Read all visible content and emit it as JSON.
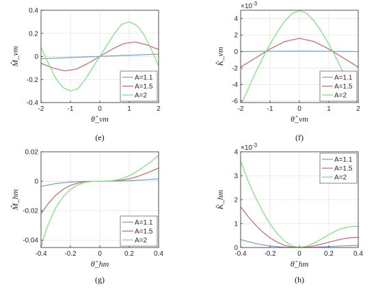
{
  "colors": {
    "axis": "#262626",
    "grid": "#e3e3e3",
    "series_blue": "#7ca3c9",
    "series_red": "#c96a78",
    "series_green": "#7fe07f"
  },
  "chart_data": [
    {
      "panel": "e",
      "caption": "(e)",
      "type": "line",
      "ylabel": "M̂_vm",
      "xlabel": "θ̂_vm",
      "xlim": [
        -2,
        2
      ],
      "ylim": [
        -0.4,
        0.4
      ],
      "xticks": [
        -2,
        -1,
        0,
        1,
        2
      ],
      "yticks": [
        -0.4,
        -0.2,
        0,
        0.2,
        0.4
      ],
      "ytick_labels": [
        "-0.4",
        "-0.2",
        "0",
        "0.2",
        "0.4"
      ],
      "xtick_labels": [
        "-2",
        "-1",
        "0",
        "1",
        "2"
      ],
      "legend": {
        "position": "bottom-right",
        "labels": [
          "A=1.1",
          "A=1.5",
          "A=2"
        ]
      },
      "series": [
        {
          "name": "A=1.1",
          "x": [
            -2,
            -1.5,
            -1,
            -0.5,
            0,
            0.5,
            1,
            1.5,
            2
          ],
          "y": [
            -0.02,
            -0.015,
            -0.01,
            -0.005,
            0,
            0.005,
            0.01,
            0.015,
            0.02
          ]
        },
        {
          "name": "A=1.5",
          "x": [
            -2,
            -1.6,
            -1.2,
            -0.8,
            -0.4,
            0,
            0.4,
            0.8,
            1.2,
            1.6,
            2
          ],
          "y": [
            -0.06,
            -0.1,
            -0.125,
            -0.11,
            -0.06,
            0,
            0.06,
            0.11,
            0.125,
            0.1,
            0.06
          ]
        },
        {
          "name": "A=2",
          "x": [
            -2,
            -1.75,
            -1.5,
            -1.25,
            -1,
            -0.75,
            -0.5,
            -0.25,
            0,
            0.25,
            0.5,
            0.75,
            1,
            1.25,
            1.5,
            1.75,
            2
          ],
          "y": [
            0.08,
            -0.06,
            -0.19,
            -0.27,
            -0.3,
            -0.28,
            -0.2,
            -0.1,
            0,
            0.1,
            0.2,
            0.28,
            0.3,
            0.27,
            0.19,
            0.06,
            -0.08
          ]
        }
      ]
    },
    {
      "panel": "f",
      "caption": "(f)",
      "type": "line",
      "ylabel": "K̂_vm",
      "xlabel": "θ̂_vm",
      "multiplier": "×10",
      "multiplier_exp": "-3",
      "xlim": [
        -2,
        2
      ],
      "ylim": [
        -6.2,
        5
      ],
      "xticks": [
        -2,
        -1,
        0,
        1,
        2
      ],
      "yticks": [
        -6,
        -4,
        -2,
        0,
        2,
        4
      ],
      "ytick_labels": [
        "-6",
        "-4",
        "-2",
        "0",
        "2",
        "4"
      ],
      "xtick_labels": [
        "-2",
        "-1",
        "0",
        "1",
        "2"
      ],
      "legend": {
        "position": "bottom-right",
        "labels": [
          "A=1.1",
          "A=1.5",
          "A=2"
        ]
      },
      "series": [
        {
          "name": "A=1.1",
          "x": [
            -2,
            -1,
            0,
            1,
            2
          ],
          "y": [
            -0.02,
            0.02,
            0.05,
            0.02,
            -0.02
          ]
        },
        {
          "name": "A=1.5",
          "x": [
            -2,
            -1.5,
            -1,
            -0.5,
            0,
            0.5,
            1,
            1.5,
            2
          ],
          "y": [
            -1.9,
            -0.8,
            0.3,
            1.2,
            1.6,
            1.2,
            0.3,
            -0.8,
            -1.9
          ]
        },
        {
          "name": "A=2",
          "x": [
            -2,
            -1.75,
            -1.5,
            -1.25,
            -1,
            -0.75,
            -0.5,
            -0.25,
            0,
            0.25,
            0.5,
            0.75,
            1,
            1.25,
            1.5,
            1.75,
            2
          ],
          "y": [
            -6.5,
            -4.6,
            -2.6,
            -0.8,
            0.9,
            2.4,
            3.7,
            4.6,
            4.95,
            4.6,
            3.7,
            2.4,
            0.9,
            -0.8,
            -2.6,
            -4.6,
            -6.5
          ]
        }
      ]
    },
    {
      "panel": "g",
      "caption": "(g)",
      "type": "line",
      "ylabel": "M̂_hm",
      "xlabel": "θ̂_hm",
      "xlim": [
        -0.4,
        0.4
      ],
      "ylim": [
        -0.045,
        0.02
      ],
      "xticks": [
        -0.4,
        -0.2,
        0,
        0.2,
        0.4
      ],
      "yticks": [
        -0.04,
        -0.02,
        0,
        0.02
      ],
      "ytick_labels": [
        "-0.04",
        "-0.02",
        "0",
        "0.02"
      ],
      "xtick_labels": [
        "-0.4",
        "-0.2",
        "0",
        "0.2",
        "0.4"
      ],
      "legend": {
        "position": "bottom-right",
        "labels": [
          "A=1.1",
          "A=1.5",
          "A=2"
        ]
      },
      "series": [
        {
          "name": "A=1.1",
          "x": [
            -0.4,
            -0.3,
            -0.2,
            -0.1,
            0,
            0.1,
            0.2,
            0.3,
            0.4
          ],
          "y": [
            -0.0035,
            -0.0016,
            -0.0005,
            -0.0001,
            0,
            0.0001,
            0.0004,
            0.0009,
            0.0016
          ]
        },
        {
          "name": "A=1.5",
          "x": [
            -0.4,
            -0.35,
            -0.3,
            -0.25,
            -0.2,
            -0.15,
            -0.1,
            -0.05,
            0,
            0.05,
            0.1,
            0.15,
            0.2,
            0.25,
            0.3,
            0.35,
            0.4
          ],
          "y": [
            -0.022,
            -0.015,
            -0.0095,
            -0.0055,
            -0.0028,
            -0.0012,
            -0.0004,
            -5e-05,
            0,
            5e-05,
            0.0003,
            0.0008,
            0.0017,
            0.003,
            0.0048,
            0.0068,
            0.009
          ]
        },
        {
          "name": "A=2",
          "x": [
            -0.4,
            -0.375,
            -0.35,
            -0.3,
            -0.25,
            -0.2,
            -0.15,
            -0.1,
            -0.05,
            0,
            0.05,
            0.1,
            0.15,
            0.2,
            0.25,
            0.3,
            0.35,
            0.4
          ],
          "y": [
            -0.045,
            -0.036,
            -0.029,
            -0.018,
            -0.0105,
            -0.0055,
            -0.0024,
            -0.0007,
            -0.0001,
            0,
            0.0001,
            0.0006,
            0.0018,
            0.0038,
            0.0066,
            0.0098,
            0.0135,
            0.0175
          ]
        }
      ]
    },
    {
      "panel": "h",
      "caption": "(h)",
      "type": "line",
      "ylabel": "K̂_hm",
      "xlabel": "θ̂_hm",
      "multiplier": "×10",
      "multiplier_exp": "-3",
      "xlim": [
        -0.4,
        0.4
      ],
      "ylim": [
        0,
        4
      ],
      "xticks": [
        -0.4,
        -0.2,
        0,
        0.2,
        0.4
      ],
      "yticks": [
        0,
        1,
        2,
        3,
        4
      ],
      "ytick_labels": [
        "0",
        "1",
        "2",
        "3",
        "4"
      ],
      "xtick_labels": [
        "-0.4",
        "-0.2",
        "0",
        "0.2",
        "0.4"
      ],
      "legend": {
        "position": "top-right",
        "labels": [
          "A=1.1",
          "A=1.5",
          "A=2"
        ]
      },
      "series": [
        {
          "name": "A=1.1",
          "x": [
            -0.4,
            -0.3,
            -0.2,
            -0.1,
            0,
            0.1,
            0.2,
            0.3,
            0.4
          ],
          "y": [
            0.33,
            0.17,
            0.06,
            0.01,
            0,
            0.01,
            0.04,
            0.07,
            0.09
          ]
        },
        {
          "name": "A=1.5",
          "x": [
            -0.4,
            -0.35,
            -0.3,
            -0.25,
            -0.2,
            -0.15,
            -0.1,
            -0.05,
            0,
            0.05,
            0.1,
            0.15,
            0.2,
            0.25,
            0.3,
            0.35,
            0.4
          ],
          "y": [
            1.7,
            1.3,
            0.95,
            0.65,
            0.4,
            0.22,
            0.09,
            0.02,
            0,
            0.02,
            0.07,
            0.14,
            0.22,
            0.3,
            0.37,
            0.41,
            0.42
          ]
        },
        {
          "name": "A=2",
          "x": [
            -0.4,
            -0.35,
            -0.3,
            -0.25,
            -0.2,
            -0.15,
            -0.1,
            -0.05,
            0,
            0.05,
            0.1,
            0.15,
            0.2,
            0.25,
            0.3,
            0.35,
            0.4
          ],
          "y": [
            3.6,
            2.8,
            2.1,
            1.5,
            0.98,
            0.57,
            0.26,
            0.07,
            0,
            0.06,
            0.19,
            0.36,
            0.54,
            0.7,
            0.82,
            0.88,
            0.88
          ]
        }
      ]
    }
  ]
}
